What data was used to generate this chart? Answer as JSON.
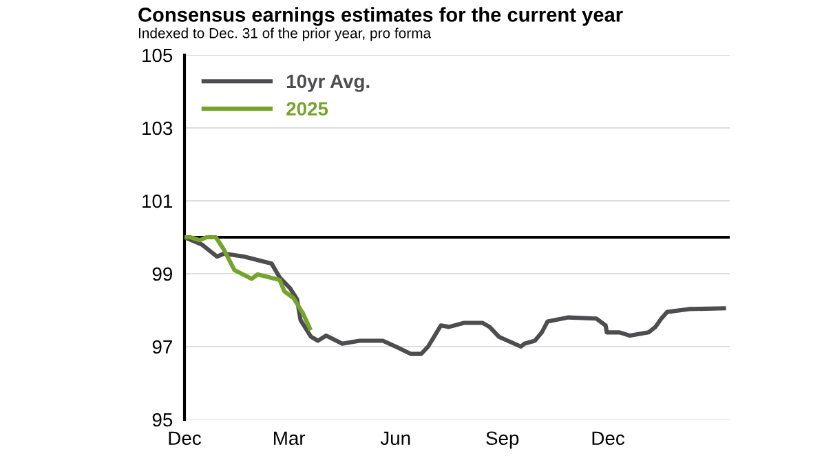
{
  "chart_data": {
    "type": "line",
    "title": "Consensus earnings estimates for the current year",
    "subtitle": "Indexed to Dec. 31 of the prior year, pro forma",
    "series": [
      {
        "name": "10yr Avg.",
        "color": "#4d4d4f",
        "x": [
          "2024-12-01",
          "2024-12-16",
          "2024-12-29",
          "2025-01-04",
          "2025-01-21",
          "2025-02-14",
          "2025-02-21",
          "2025-03-02",
          "2025-03-08",
          "2025-03-11",
          "2025-03-20",
          "2025-03-26",
          "2025-04-02",
          "2025-04-16",
          "2025-05-01",
          "2025-05-21",
          "2025-06-03",
          "2025-06-14",
          "2025-06-23",
          "2025-06-29",
          "2025-07-10",
          "2025-07-17",
          "2025-07-30",
          "2025-08-15",
          "2025-08-21",
          "2025-08-29",
          "2025-09-17",
          "2025-09-20",
          "2025-09-29",
          "2025-10-05",
          "2025-10-10",
          "2025-10-28",
          "2025-11-21",
          "2025-11-29",
          "2025-11-30",
          "2025-12-11",
          "2025-12-20",
          "2026-01-05",
          "2026-01-11",
          "2026-01-16",
          "2026-01-21",
          "2026-02-09",
          "2026-03-11"
        ],
        "values": [
          100,
          99.8,
          99.47,
          99.55,
          99.47,
          99.28,
          98.9,
          98.6,
          98.3,
          97.73,
          97.27,
          97.16,
          97.3,
          97.08,
          97.16,
          97.16,
          96.97,
          96.8,
          96.8,
          97.0,
          97.58,
          97.54,
          97.65,
          97.65,
          97.54,
          97.27,
          97.0,
          97.08,
          97.16,
          97.39,
          97.69,
          97.8,
          97.77,
          97.58,
          97.39,
          97.39,
          97.3,
          97.39,
          97.54,
          97.77,
          97.95,
          98.03,
          98.05
        ]
      },
      {
        "name": "2025",
        "color": "#76a32b",
        "x": [
          "2024-12-01",
          "2024-12-06",
          "2024-12-14",
          "2024-12-20",
          "2024-12-28",
          "2025-01-04",
          "2025-01-13",
          "2025-01-28",
          "2025-02-02",
          "2025-02-21",
          "2025-02-25",
          "2025-03-05",
          "2025-03-13",
          "2025-03-19"
        ],
        "values": [
          100,
          100,
          99.92,
          100,
          100,
          99.66,
          99.1,
          98.86,
          98.98,
          98.83,
          98.52,
          98.33,
          97.92,
          97.5
        ]
      }
    ],
    "xlim": [
      "2024-12-01",
      "2026-03-16"
    ],
    "xticks": [
      {
        "value": "2024-12-01",
        "label": "Dec"
      },
      {
        "value": "2025-03-01",
        "label": "Mar"
      },
      {
        "value": "2025-06-01",
        "label": "Jun"
      },
      {
        "value": "2025-09-01",
        "label": "Sep"
      },
      {
        "value": "2025-12-01",
        "label": "Dec"
      }
    ],
    "ylim": [
      95,
      105
    ],
    "yticks": [
      95,
      97,
      99,
      101,
      103,
      105
    ],
    "ref_lines": [
      {
        "axis": "y",
        "value": 100,
        "label": null,
        "color": "#000000"
      }
    ],
    "grid": "y",
    "legend": "top left",
    "line_style": "solid",
    "marker": "none"
  }
}
